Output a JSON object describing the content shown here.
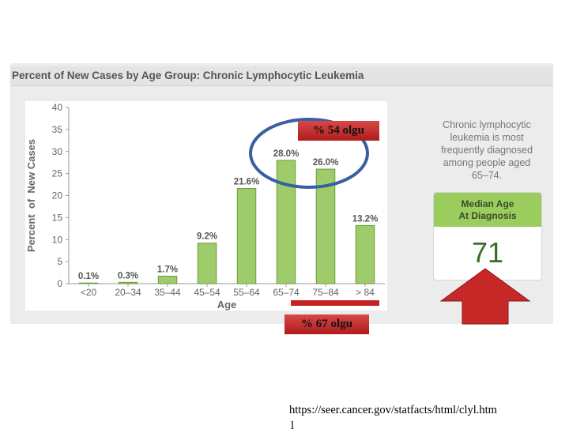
{
  "header": {
    "title": "Percent of New Cases by Age Group: Chronic Lymphocytic Leukemia"
  },
  "chart_data": {
    "type": "bar",
    "title": "Percent of New Cases by Age Group: Chronic Lymphocytic Leukemia",
    "xlabel": "Age",
    "ylabel": "Percent  of  New Cases",
    "categories": [
      "<20",
      "20–34",
      "35–44",
      "45–54",
      "55–64",
      "65–74",
      "75–84",
      "> 84"
    ],
    "values": [
      0.1,
      0.3,
      1.7,
      9.2,
      21.6,
      28.0,
      26.0,
      13.2
    ],
    "data_labels": [
      "0.1%",
      "0.3%",
      "1.7%",
      "9.2%",
      "21.6%",
      "28.0%",
      "26.0%",
      "13.2%"
    ],
    "ylim": [
      0,
      40
    ],
    "yticks": [
      "0",
      "5",
      "10",
      "15",
      "20",
      "25",
      "30",
      "35",
      "40"
    ],
    "grid": false,
    "bar_color": "#9fcc6b",
    "bar_stroke": "#6b9a3c"
  },
  "side_note": {
    "lines": [
      "Chronic lymphocytic",
      "leukemia is most",
      "frequently diagnosed",
      "among people aged",
      "65–74."
    ]
  },
  "median": {
    "heading_line1": "Median Age",
    "heading_line2": "At Diagnosis",
    "value": "71",
    "header_color": "#9bcd5e"
  },
  "annotations": {
    "label_54": "% 54 olgu",
    "label_67": "% 67 olgu",
    "ellipse_color": "#3a5fa0",
    "label_color": "#c62828",
    "arrow_color": "#c62828"
  },
  "footer": {
    "url": "https://seer.cancer.gov/statfacts/html/clyl.htm",
    "url_tail": "l"
  }
}
